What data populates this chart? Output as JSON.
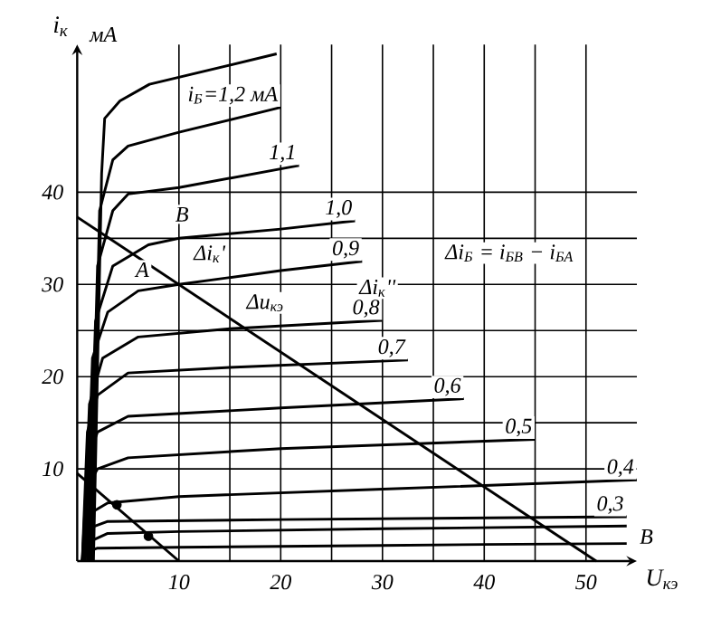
{
  "chart_data": {
    "type": "line",
    "xlabel": "U$_{кэ}$",
    "ylabel": "i$_{к}$",
    "xlim": [
      0,
      55
    ],
    "ylim": [
      0,
      56
    ],
    "xticks": [
      10,
      20,
      30,
      40,
      50
    ],
    "yticks": [
      10,
      20,
      30,
      40
    ],
    "grid": true,
    "series": [
      {
        "color": "#000000",
        "x": [
          0.5,
          1,
          2,
          10,
          20,
          30,
          40,
          54
        ],
        "values": [
          0,
          1,
          1.4,
          1.5,
          1.6,
          1.7,
          1.8,
          1.9
        ]
      },
      {
        "color": "#000000",
        "x": [
          0.5,
          1,
          3,
          10,
          30,
          54
        ],
        "values": [
          0,
          2,
          3,
          3.2,
          3.5,
          3.8
        ]
      },
      {
        "name": "0,3",
        "color": "#000000",
        "x": [
          0.5,
          1,
          3,
          20,
          54
        ],
        "values": [
          0,
          3.5,
          4.3,
          4.5,
          4.8
        ]
      },
      {
        "name": "0,4",
        "color": "#000000",
        "x": [
          0.5,
          1,
          3,
          10,
          30,
          55
        ],
        "values": [
          0,
          5,
          6.3,
          7,
          7.8,
          8.8
        ]
      },
      {
        "name": "0,5",
        "color": "#000000",
        "x": [
          0.5,
          1,
          2,
          5,
          20,
          45
        ],
        "values": [
          0,
          8,
          10,
          11.2,
          12.2,
          13.2
        ]
      },
      {
        "name": "0,6",
        "color": "#000000",
        "x": [
          0.5,
          1,
          2,
          5,
          20,
          38
        ],
        "values": [
          0,
          11,
          14,
          15.7,
          16.6,
          17.6
        ]
      },
      {
        "name": "0,7",
        "color": "#000000",
        "x": [
          0.5,
          1,
          2,
          5,
          15,
          32.5
        ],
        "values": [
          0,
          14,
          18,
          20.4,
          21,
          21.8
        ]
      },
      {
        "name": "0,8",
        "color": "#000000",
        "x": [
          0.6,
          1.2,
          2.5,
          6,
          15,
          30
        ],
        "values": [
          0,
          17,
          22,
          24.3,
          25.2,
          26.1
        ]
      },
      {
        "name": "0,9",
        "color": "#000000",
        "x": [
          0.8,
          1.5,
          3,
          6,
          10,
          20,
          28
        ],
        "values": [
          0,
          22,
          27,
          29.3,
          30,
          31.5,
          32.5
        ]
      },
      {
        "name": "1,0",
        "color": "#000000",
        "x": [
          1,
          1.8,
          3.5,
          7,
          10,
          20,
          27.3
        ],
        "values": [
          0,
          26,
          32,
          34.3,
          35,
          36,
          36.9
        ]
      },
      {
        "name": "1,1",
        "color": "#000000",
        "x": [
          1.2,
          2,
          3.5,
          5,
          10,
          21.8
        ],
        "values": [
          0,
          32,
          38,
          39.8,
          40.5,
          42.9
        ]
      },
      {
        "name": "i$_{Б}$=1,2 мА",
        "color": "#000000",
        "x": [
          1.4,
          2.2,
          3.5,
          5,
          10,
          20
        ],
        "values": [
          0,
          38,
          43.5,
          45,
          46.5,
          49.2
        ]
      },
      {
        "color": "#000000",
        "x": [
          1.6,
          2.4,
          2.7,
          4.2,
          7.1,
          19.6
        ],
        "values": [
          0,
          42,
          48,
          49.9,
          51.7,
          55
        ]
      },
      {
        "color": "#000000",
        "x": [
          0,
          51
        ],
        "values": [
          37.3,
          0
        ]
      },
      {
        "color": "#000000",
        "x": [
          0,
          10
        ],
        "values": [
          9.5,
          0
        ]
      },
      {
        "type": "scatter",
        "color": "#000000",
        "x": [
          3.9,
          7
        ],
        "values": [
          6.1,
          2.7
        ]
      }
    ],
    "annotations": [
      "мА",
      "В",
      "B",
      "A",
      "Δi$_{к}$'",
      "Δu$_{кэ}$",
      "Δi$_{к}$''",
      "Δi$_{Б}$ = i$_{БB}$ − i$_{БA}$"
    ]
  }
}
